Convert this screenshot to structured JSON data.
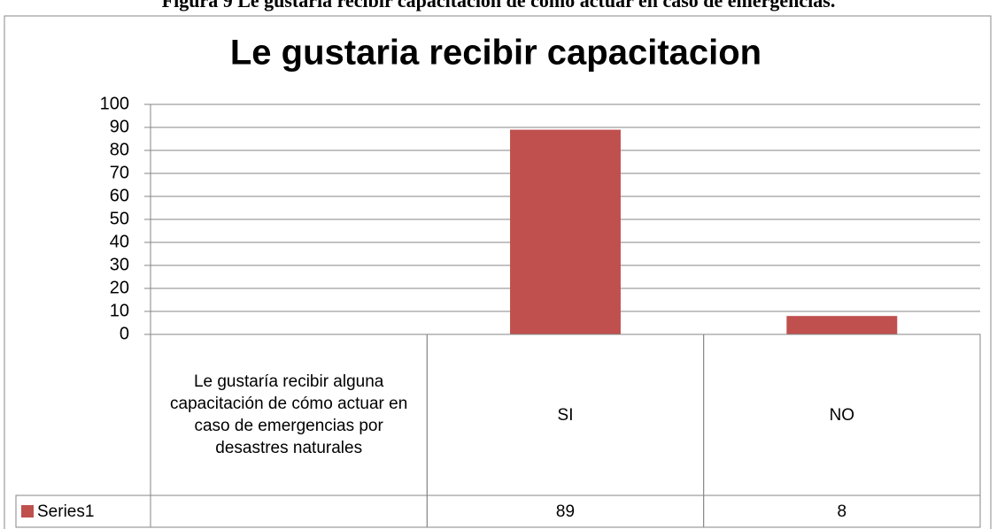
{
  "caption": "Figura 9 Le gustaria recibir capacitacion de cómo actuar en caso de emergencias.",
  "chart_data": {
    "type": "bar",
    "title": "Le gustaria recibir capacitacion",
    "categories": [
      "Le gustaría recibir alguna capacitación de cómo actuar en caso de emergencias por desastres naturales",
      "SI",
      "NO"
    ],
    "series": [
      {
        "name": "Series1",
        "color": "#c0504d",
        "values": [
          null,
          89,
          8
        ]
      }
    ],
    "ylim": [
      0,
      100
    ],
    "yticks": [
      0,
      10,
      20,
      30,
      40,
      50,
      60,
      70,
      80,
      90,
      100
    ],
    "grid": true,
    "data_table": true
  }
}
